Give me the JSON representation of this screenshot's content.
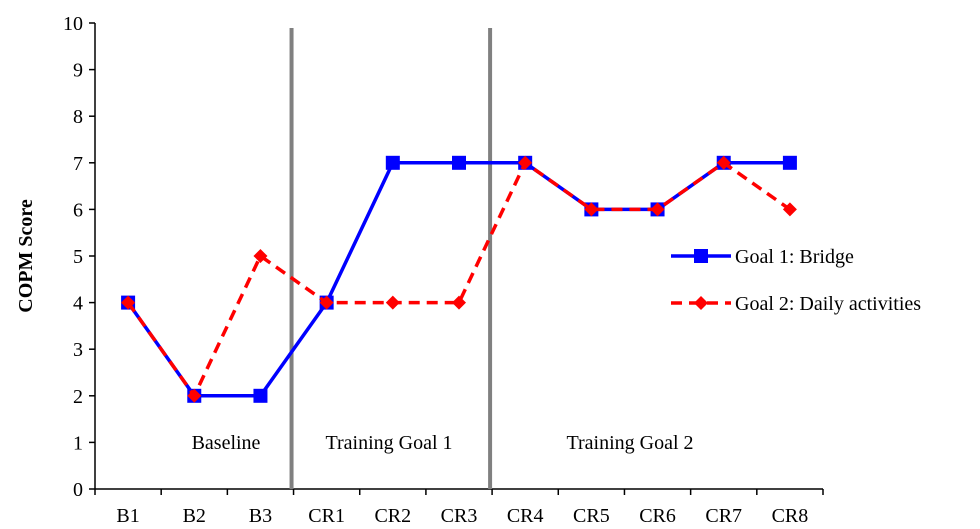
{
  "chart_data": {
    "type": "line",
    "ylabel": "COPM Score",
    "xlabel": "",
    "ylim": [
      0,
      10
    ],
    "yticks": [
      0,
      1,
      2,
      3,
      4,
      5,
      6,
      7,
      8,
      9,
      10
    ],
    "categories": [
      "B1",
      "B2",
      "B3",
      "CR1",
      "CR2",
      "CR3",
      "CR4",
      "CR5",
      "CR6",
      "CR7",
      "CR8"
    ],
    "series": [
      {
        "name": "Goal 1: Bridge",
        "values": [
          4,
          2,
          2,
          4,
          7,
          7,
          7,
          6,
          6,
          7,
          7
        ],
        "color": "#0000ff",
        "marker": "square",
        "dash": "solid"
      },
      {
        "name": "Goal 2: Daily activities",
        "values": [
          4,
          2,
          5,
          4,
          4,
          4,
          7,
          6,
          6,
          7,
          6
        ],
        "color": "#ff0000",
        "marker": "diamond",
        "dash": "dashed"
      }
    ],
    "phase_dividers": [
      3,
      6
    ],
    "phase_labels": [
      "Baseline",
      "Training Goal 1",
      "Training Goal 2"
    ],
    "divider_color": "#808080",
    "grid": false,
    "legend_position": "right"
  }
}
